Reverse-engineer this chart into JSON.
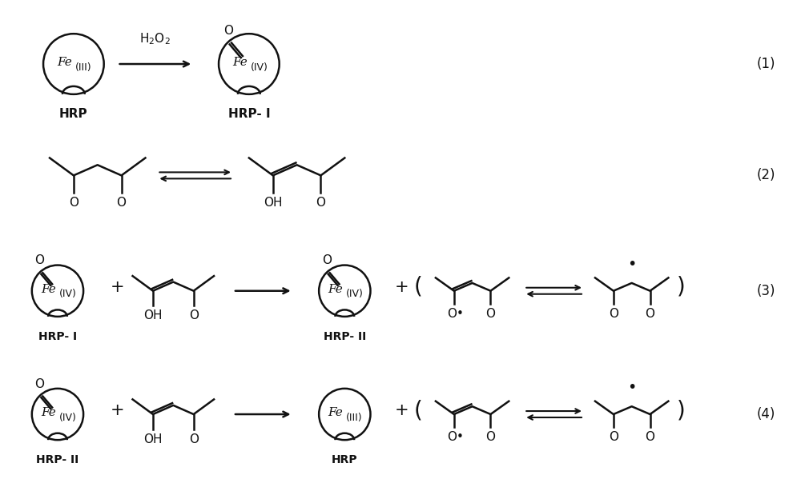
{
  "bg_color": "#ffffff",
  "line_color": "#111111",
  "figsize": [
    10.0,
    6.09
  ],
  "dpi": 100,
  "xlim": [
    0,
    1000
  ],
  "ylim": [
    0,
    609
  ]
}
